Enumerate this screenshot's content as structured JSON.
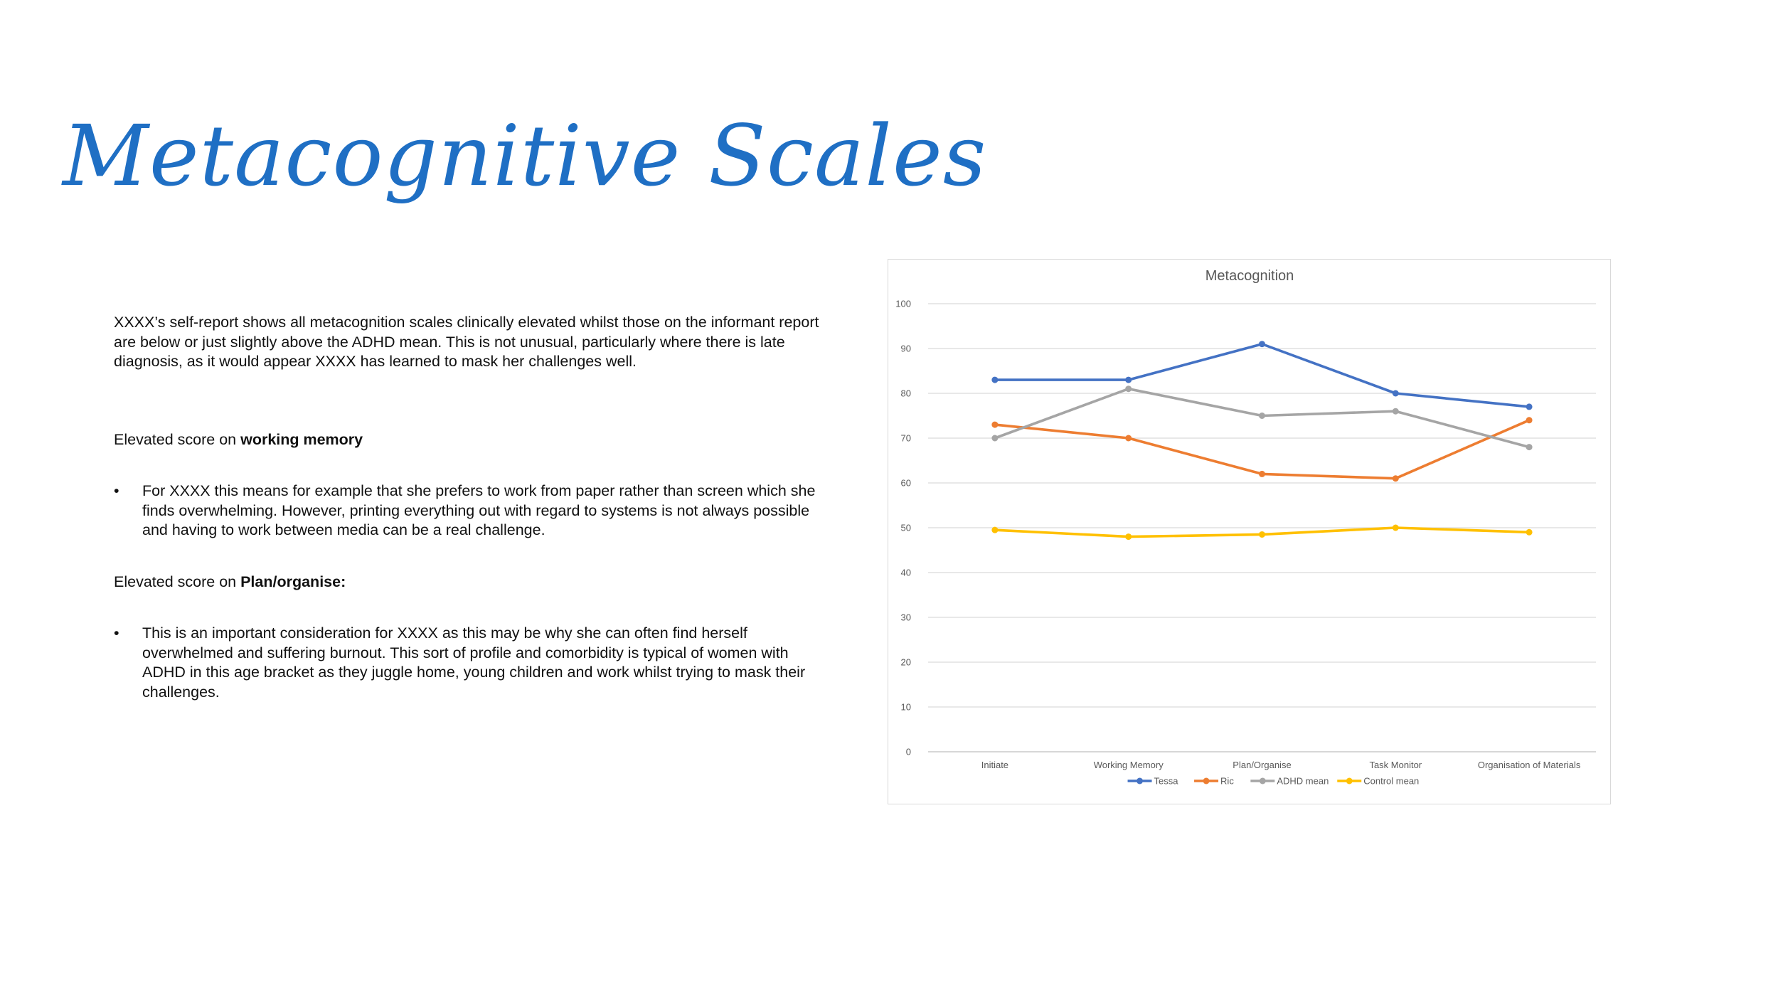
{
  "slide": {
    "title": "Metacognitive Scales",
    "intro": "XXXX’s self-report shows all metacognition scales clinically elevated whilst those on the informant report are below or just slightly above the ADHD mean. This is not unusual, particularly where there is late diagnosis, as it would appear XXXX has learned to mask her challenges well.",
    "section1": {
      "prefix": "Elevated score on ",
      "bold": "working memory",
      "bullet_symbol": "•",
      "bullet": "For XXXX this means for example that she prefers to work from paper rather than screen which she finds overwhelming. However, printing everything out with regard to systems is not always possible and having to work between media can be a real challenge."
    },
    "section2": {
      "prefix": "Elevated score on ",
      "bold": "Plan/organise:",
      "bullet_symbol": "•",
      "bullet": "This is an important consideration for XXXX as this may be why she can often find herself overwhelmed and suffering burnout. This sort of profile and comorbidity is typical of women with ADHD in this age bracket as they juggle home, young children and work whilst trying to mask their challenges."
    }
  },
  "chart_data": {
    "type": "line",
    "title": "Metacognition",
    "categories": [
      "Initiate",
      "Working Memory",
      "Plan/Organise",
      "Task Monitor",
      "Organisation of Materials"
    ],
    "ylim": [
      0,
      100
    ],
    "yticks": [
      0,
      10,
      20,
      30,
      40,
      50,
      60,
      70,
      80,
      90,
      100
    ],
    "grid": true,
    "legend_position": "bottom",
    "series": [
      {
        "name": "Tessa",
        "color": "#4472c4",
        "values": [
          83,
          83,
          91,
          80,
          77
        ]
      },
      {
        "name": "Ric",
        "color": "#ed7d31",
        "values": [
          73,
          70,
          62,
          61,
          74
        ]
      },
      {
        "name": "ADHD mean",
        "color": "#a5a5a5",
        "values": [
          70,
          81,
          75,
          76,
          68
        ]
      },
      {
        "name": "Control mean",
        "color": "#ffc000",
        "values": [
          49.5,
          48,
          48.5,
          50,
          49
        ]
      }
    ]
  }
}
